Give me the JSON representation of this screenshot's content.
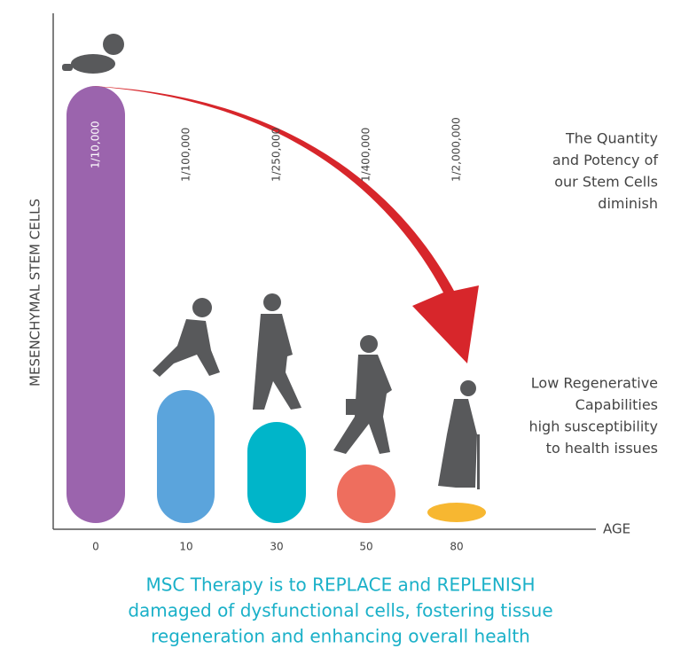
{
  "axis": {
    "y_label": "MESENCHYMAL STEM CELLS",
    "x_label": "AGE"
  },
  "columns": [
    {
      "age": 0,
      "ratio": "1/10,000"
    },
    {
      "age": 10,
      "ratio": "1/100,000"
    },
    {
      "age": 30,
      "ratio": "1/250,000"
    },
    {
      "age": 50,
      "ratio": "1/400,000"
    },
    {
      "age": 80,
      "ratio": "1/2,000,000"
    }
  ],
  "notes": [
    {
      "lines": [
        "The Quantity",
        "and Potency of",
        "our Stem Cells",
        "diminish"
      ]
    },
    {
      "lines": [
        "Low Regenerative",
        "Capabilities",
        "high susceptibility",
        "to health issues"
      ]
    }
  ],
  "footer": {
    "lines": [
      "MSC Therapy is to REPLACE and REPLENISH",
      "damaged of dysfunctional cells, fostering tissue",
      "regeneration and enhancing overall health"
    ]
  }
}
